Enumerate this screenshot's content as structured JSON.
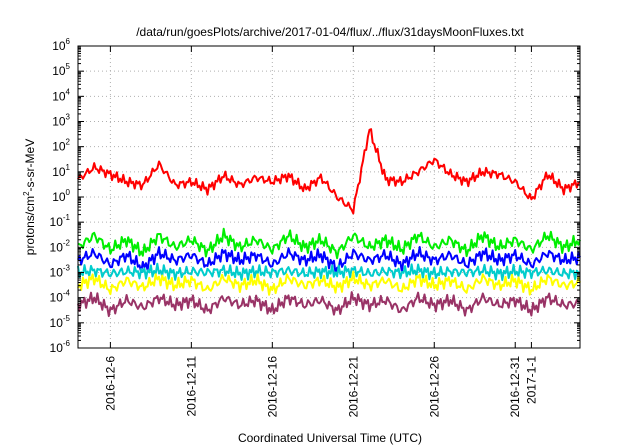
{
  "chart_data": {
    "type": "line",
    "title": "/data/run/goesPlots/archive/2017-01-04/flux/../flux/31daysMoonFluxes.txt",
    "xlabel": "Coordinated Universal Time (UTC)",
    "ylabel": "protons/cm2-s-sr-MeV",
    "ylabel_parts": {
      "pre": "protons/cm",
      "sup": "2",
      "post": "-s-sr-MeV"
    },
    "yscale": "log",
    "ylim_exp": [
      -6,
      6
    ],
    "y_ticks": [
      {
        "base": "10",
        "exp": "-6"
      },
      {
        "base": "10",
        "exp": "-5"
      },
      {
        "base": "10",
        "exp": "-4"
      },
      {
        "base": "10",
        "exp": "-3"
      },
      {
        "base": "10",
        "exp": "-2"
      },
      {
        "base": "10",
        "exp": "-1"
      },
      {
        "base": "10",
        "exp": "0"
      },
      {
        "base": "10",
        "exp": "1"
      },
      {
        "base": "10",
        "exp": "2"
      },
      {
        "base": "10",
        "exp": "3"
      },
      {
        "base": "10",
        "exp": "4"
      },
      {
        "base": "10",
        "exp": "5"
      },
      {
        "base": "10",
        "exp": "6"
      }
    ],
    "x_range": [
      "2016-12-04",
      "2017-01-04"
    ],
    "x_ticks": [
      {
        "label": "2016-12-6",
        "date": "2016-12-06"
      },
      {
        "label": "2016-12-11",
        "date": "2016-12-11"
      },
      {
        "label": "2016-12-16",
        "date": "2016-12-16"
      },
      {
        "label": "2016-12-21",
        "date": "2016-12-21"
      },
      {
        "label": "2016-12-26",
        "date": "2016-12-26"
      },
      {
        "label": "2016-12-31",
        "date": "2016-12-31"
      },
      {
        "label": "2017-1-1",
        "date": "2017-01-01"
      }
    ],
    "grid": true,
    "series": [
      {
        "color": "#ff0000",
        "x": [
          "2016-12-04",
          "2016-12-05",
          "2016-12-06",
          "2016-12-07",
          "2016-12-08",
          "2016-12-09",
          "2016-12-10",
          "2016-12-11",
          "2016-12-12",
          "2016-12-13",
          "2016-12-14",
          "2016-12-15",
          "2016-12-16",
          "2016-12-17",
          "2016-12-18",
          "2016-12-19",
          "2016-12-20",
          "2016-12-21",
          "2016-12-22",
          "2016-12-23",
          "2016-12-24",
          "2016-12-25",
          "2016-12-26",
          "2016-12-27",
          "2016-12-28",
          "2016-12-29",
          "2016-12-30",
          "2016-12-31",
          "2017-01-01",
          "2017-01-02",
          "2017-01-03",
          "2017-01-04"
        ],
        "y": [
          5,
          15,
          8,
          4,
          3,
          20,
          3,
          4,
          2,
          7,
          3,
          6,
          4,
          7,
          2,
          6,
          1,
          0.3,
          500,
          5,
          4,
          10,
          30,
          8,
          4,
          10,
          8,
          4,
          0.8,
          8,
          2,
          4
        ]
      },
      {
        "color": "#00ee00",
        "x": [
          "2016-12-04",
          "2016-12-05",
          "2016-12-06",
          "2016-12-07",
          "2016-12-08",
          "2016-12-09",
          "2016-12-10",
          "2016-12-11",
          "2016-12-12",
          "2016-12-13",
          "2016-12-14",
          "2016-12-15",
          "2016-12-16",
          "2016-12-17",
          "2016-12-18",
          "2016-12-19",
          "2016-12-20",
          "2016-12-21",
          "2016-12-22",
          "2016-12-23",
          "2016-12-24",
          "2016-12-25",
          "2016-12-26",
          "2016-12-27",
          "2016-12-28",
          "2016-12-29",
          "2016-12-30",
          "2016-12-31",
          "2017-01-01",
          "2017-01-02",
          "2017-01-03",
          "2017-01-04"
        ],
        "y": [
          0.01,
          0.03,
          0.008,
          0.02,
          0.006,
          0.03,
          0.01,
          0.02,
          0.007,
          0.03,
          0.01,
          0.02,
          0.008,
          0.03,
          0.01,
          0.02,
          0.006,
          0.03,
          0.01,
          0.02,
          0.008,
          0.03,
          0.01,
          0.02,
          0.007,
          0.03,
          0.01,
          0.02,
          0.008,
          0.03,
          0.01,
          0.02
        ]
      },
      {
        "color": "#0000ff",
        "x": [
          "2016-12-04",
          "2016-12-05",
          "2016-12-06",
          "2016-12-07",
          "2016-12-08",
          "2016-12-09",
          "2016-12-10",
          "2016-12-11",
          "2016-12-12",
          "2016-12-13",
          "2016-12-14",
          "2016-12-15",
          "2016-12-16",
          "2016-12-17",
          "2016-12-18",
          "2016-12-19",
          "2016-12-20",
          "2016-12-21",
          "2016-12-22",
          "2016-12-23",
          "2016-12-24",
          "2016-12-25",
          "2016-12-26",
          "2016-12-27",
          "2016-12-28",
          "2016-12-29",
          "2016-12-30",
          "2016-12-31",
          "2017-01-01",
          "2017-01-02",
          "2017-01-03",
          "2017-01-04"
        ],
        "y": [
          0.003,
          0.006,
          0.002,
          0.005,
          0.0015,
          0.006,
          0.003,
          0.005,
          0.002,
          0.006,
          0.003,
          0.005,
          0.002,
          0.006,
          0.003,
          0.005,
          0.0015,
          0.006,
          0.003,
          0.005,
          0.002,
          0.006,
          0.003,
          0.005,
          0.002,
          0.006,
          0.003,
          0.005,
          0.002,
          0.006,
          0.003,
          0.004
        ]
      },
      {
        "color": "#00cccc",
        "x": [
          "2016-12-04",
          "2016-12-05",
          "2016-12-06",
          "2016-12-07",
          "2016-12-08",
          "2016-12-09",
          "2016-12-10",
          "2016-12-11",
          "2016-12-12",
          "2016-12-13",
          "2016-12-14",
          "2016-12-15",
          "2016-12-16",
          "2016-12-17",
          "2016-12-18",
          "2016-12-19",
          "2016-12-20",
          "2016-12-21",
          "2016-12-22",
          "2016-12-23",
          "2016-12-24",
          "2016-12-25",
          "2016-12-26",
          "2016-12-27",
          "2016-12-28",
          "2016-12-29",
          "2016-12-30",
          "2016-12-31",
          "2017-01-01",
          "2017-01-02",
          "2017-01-03",
          "2017-01-04"
        ],
        "y": [
          0.001,
          0.0012,
          0.0009,
          0.0011,
          0.001,
          0.0012,
          0.0009,
          0.0011,
          0.001,
          0.0012,
          0.0009,
          0.0011,
          0.001,
          0.0012,
          0.0009,
          0.0011,
          0.001,
          0.0012,
          0.0009,
          0.0011,
          0.001,
          0.0012,
          0.0009,
          0.0011,
          0.001,
          0.0012,
          0.0009,
          0.0011,
          0.001,
          0.0012,
          0.0009,
          0.001
        ]
      },
      {
        "color": "#ffff00",
        "x": [
          "2016-12-04",
          "2016-12-05",
          "2016-12-06",
          "2016-12-07",
          "2016-12-08",
          "2016-12-09",
          "2016-12-10",
          "2016-12-11",
          "2016-12-12",
          "2016-12-13",
          "2016-12-14",
          "2016-12-15",
          "2016-12-16",
          "2016-12-17",
          "2016-12-18",
          "2016-12-19",
          "2016-12-20",
          "2016-12-21",
          "2016-12-22",
          "2016-12-23",
          "2016-12-24",
          "2016-12-25",
          "2016-12-26",
          "2016-12-27",
          "2016-12-28",
          "2016-12-29",
          "2016-12-30",
          "2016-12-31",
          "2017-01-01",
          "2017-01-02",
          "2017-01-03",
          "2017-01-04"
        ],
        "y": [
          0.0003,
          0.0006,
          0.0002,
          0.0005,
          0.00025,
          0.0006,
          0.0003,
          0.0005,
          0.0002,
          0.0006,
          0.0003,
          0.0005,
          0.0002,
          0.0006,
          0.0003,
          0.0005,
          0.00025,
          0.0006,
          0.0003,
          0.0005,
          0.0002,
          0.0006,
          0.0003,
          0.0005,
          0.0002,
          0.0006,
          0.0003,
          0.0005,
          0.0002,
          0.0006,
          0.0003,
          0.0004
        ]
      },
      {
        "color": "#993366",
        "x": [
          "2016-12-04",
          "2016-12-05",
          "2016-12-06",
          "2016-12-07",
          "2016-12-08",
          "2016-12-09",
          "2016-12-10",
          "2016-12-11",
          "2016-12-12",
          "2016-12-13",
          "2016-12-14",
          "2016-12-15",
          "2016-12-16",
          "2016-12-17",
          "2016-12-18",
          "2016-12-19",
          "2016-12-20",
          "2016-12-21",
          "2016-12-22",
          "2016-12-23",
          "2016-12-24",
          "2016-12-25",
          "2016-12-26",
          "2016-12-27",
          "2016-12-28",
          "2016-12-29",
          "2016-12-30",
          "2016-12-31",
          "2017-01-01",
          "2017-01-02",
          "2017-01-03",
          "2017-01-04"
        ],
        "y": [
          5e-05,
          0.0001,
          3e-05,
          8e-05,
          4e-05,
          0.0001,
          5e-05,
          8e-05,
          3e-05,
          0.0001,
          5e-05,
          8e-05,
          3e-05,
          0.0001,
          5e-05,
          8e-05,
          3e-05,
          0.0001,
          5e-05,
          8e-05,
          3e-05,
          0.0001,
          5e-05,
          8e-05,
          3e-05,
          0.0001,
          5e-05,
          8e-05,
          3e-05,
          0.0001,
          5e-05,
          6e-05
        ]
      }
    ]
  }
}
